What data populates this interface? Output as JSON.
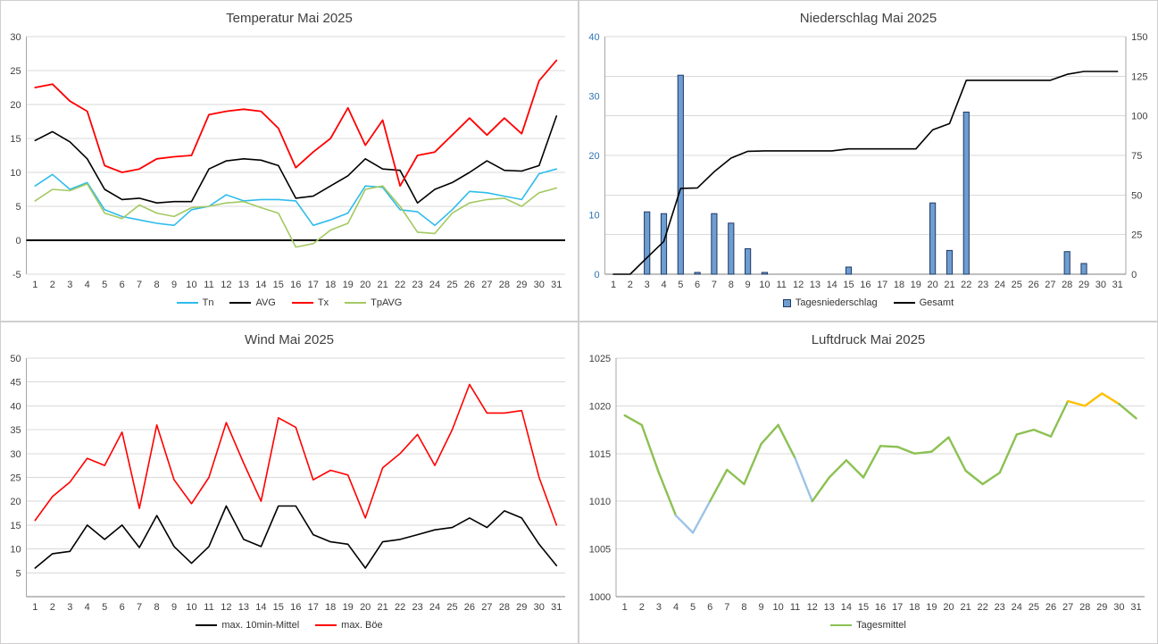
{
  "colors": {
    "grid": "#d9d9d9",
    "axis": "#a6a6a6",
    "axis_dark": "#7f7f7f",
    "tick_text": "#404040"
  },
  "chart_data": [
    {
      "type": "line",
      "title": "Temperatur Mai 2025",
      "categories": [
        "1",
        "2",
        "3",
        "4",
        "5",
        "6",
        "7",
        "8",
        "9",
        "10",
        "11",
        "12",
        "13",
        "14",
        "15",
        "16",
        "17",
        "18",
        "19",
        "20",
        "21",
        "22",
        "23",
        "24",
        "25",
        "26",
        "27",
        "28",
        "29",
        "30",
        "31"
      ],
      "y_left": {
        "min": -5,
        "max": 30,
        "ticks": [
          30,
          25,
          20,
          15,
          10,
          5,
          0,
          -5
        ]
      },
      "zero_axis": true,
      "legend_position": "bottom",
      "grid": true,
      "series": [
        {
          "name": "Tn",
          "type": "line",
          "color": "#2FBCEC",
          "width": 1.6,
          "values": [
            8,
            9.7,
            7.5,
            8.5,
            4.5,
            3.5,
            3,
            2.5,
            2.2,
            4.5,
            5,
            6.7,
            5.8,
            6,
            6,
            5.8,
            2.2,
            3,
            4,
            8,
            7.8,
            4.5,
            4.2,
            2.2,
            4.5,
            7.2,
            7,
            6.5,
            6,
            9.8,
            10.5
          ]
        },
        {
          "name": "AVG",
          "type": "line",
          "color": "#000000",
          "width": 1.6,
          "values": [
            14.7,
            16,
            14.5,
            12,
            7.5,
            6,
            6.2,
            5.5,
            5.7,
            5.7,
            10.5,
            11.7,
            12,
            11.8,
            11,
            6.2,
            6.5,
            8,
            9.5,
            12,
            10.5,
            10.3,
            5.5,
            7.5,
            8.5,
            10,
            11.7,
            10.3,
            10.2,
            11,
            18.3
          ]
        },
        {
          "name": "Tx",
          "type": "line",
          "color": "#FF0000",
          "width": 1.8,
          "values": [
            22.5,
            23,
            20.5,
            19,
            11,
            10,
            10.5,
            12,
            12.3,
            12.5,
            18.5,
            19,
            19.3,
            19,
            16.5,
            10.7,
            13,
            15,
            19.5,
            14,
            17.7,
            8,
            12.5,
            13,
            15.5,
            18,
            15.5,
            18,
            15.7,
            23.5,
            26.5
          ]
        },
        {
          "name": "TpAVG",
          "type": "line",
          "color": "#A3C961",
          "width": 1.6,
          "values": [
            5.8,
            7.5,
            7.3,
            8.3,
            4,
            3.2,
            5.2,
            4,
            3.5,
            4.8,
            5,
            5.5,
            5.7,
            4.8,
            4,
            -1,
            -0.5,
            1.5,
            2.5,
            7.5,
            8,
            5,
            1.2,
            1,
            4,
            5.5,
            6,
            6.2,
            5,
            7,
            7.7
          ]
        }
      ]
    },
    {
      "type": "combo",
      "title": "Niederschlag Mai 2025",
      "categories": [
        "1",
        "2",
        "3",
        "4",
        "5",
        "6",
        "7",
        "8",
        "9",
        "10",
        "11",
        "12",
        "13",
        "14",
        "15",
        "16",
        "17",
        "18",
        "19",
        "20",
        "21",
        "22",
        "23",
        "24",
        "25",
        "26",
        "27",
        "28",
        "29",
        "30",
        "31"
      ],
      "y_left": {
        "min": 0,
        "max": 40,
        "ticks": [
          40,
          30,
          20,
          10,
          0
        ],
        "color": "#2E75B6"
      },
      "y_right": {
        "min": 0,
        "max": 150,
        "ticks": [
          150,
          125,
          100,
          75,
          50,
          25,
          0
        ]
      },
      "gridline_axis": "right",
      "grid": true,
      "series": [
        {
          "name": "Tagesniederschlag",
          "type": "bar",
          "axis": "left",
          "color": "#6D9DD1",
          "border": "#1F3864",
          "values": [
            0,
            0,
            10.5,
            10.2,
            33.5,
            0.3,
            10.2,
            8.6,
            4.3,
            0.3,
            0,
            0,
            0,
            0,
            1.2,
            0,
            0,
            0,
            0,
            12,
            4,
            27.3,
            0,
            0,
            0,
            0,
            0,
            3.8,
            1.8,
            0,
            0
          ]
        },
        {
          "name": "Gesamt",
          "type": "line",
          "axis": "right",
          "color": "#000000",
          "width": 1.6,
          "values": [
            0,
            0,
            10.5,
            20.7,
            54.2,
            54.5,
            64.7,
            73.3,
            77.6,
            77.9,
            77.9,
            77.9,
            77.9,
            77.9,
            79.1,
            79.1,
            79.1,
            79.1,
            79.1,
            91.1,
            95.1,
            122.4,
            122.4,
            122.4,
            122.4,
            122.4,
            122.4,
            126.2,
            128,
            128,
            128
          ]
        }
      ]
    },
    {
      "type": "line",
      "title": "Wind Mai 2025",
      "categories": [
        "1",
        "2",
        "3",
        "4",
        "5",
        "6",
        "7",
        "8",
        "9",
        "10",
        "11",
        "12",
        "13",
        "14",
        "15",
        "16",
        "17",
        "18",
        "19",
        "20",
        "21",
        "22",
        "23",
        "24",
        "25",
        "26",
        "27",
        "28",
        "29",
        "30",
        "31"
      ],
      "y_left": {
        "min": 0,
        "max": 50,
        "ticks": [
          50,
          45,
          40,
          35,
          30,
          25,
          20,
          15,
          10,
          5
        ]
      },
      "grid": true,
      "series": [
        {
          "name": "max. 10min-Mittel",
          "type": "line",
          "color": "#000000",
          "width": 1.6,
          "values": [
            6,
            9,
            9.5,
            15,
            12,
            15,
            10.3,
            17,
            10.5,
            7,
            10.5,
            19,
            12,
            10.5,
            19,
            19,
            13,
            11.5,
            11,
            6,
            11.5,
            12,
            13,
            14,
            14.5,
            16.5,
            14.5,
            18,
            16.5,
            11,
            6.5
          ]
        },
        {
          "name": "max. Böe",
          "type": "line",
          "color": "#FF0000",
          "width": 1.6,
          "values": [
            16,
            21,
            24,
            29,
            27.5,
            34.5,
            18.5,
            36,
            24.5,
            19.5,
            25,
            36.5,
            28,
            20,
            37.5,
            35.5,
            24.5,
            26.5,
            25.5,
            16.5,
            27,
            30,
            34,
            27.5,
            35,
            44.5,
            38.5,
            38.5,
            39,
            25,
            15
          ]
        }
      ]
    },
    {
      "type": "line",
      "title": "Luftdruck Mai 2025",
      "categories": [
        "1",
        "2",
        "3",
        "4",
        "5",
        "6",
        "7",
        "8",
        "9",
        "10",
        "11",
        "12",
        "13",
        "14",
        "15",
        "16",
        "17",
        "18",
        "19",
        "20",
        "21",
        "22",
        "23",
        "24",
        "25",
        "26",
        "27",
        "28",
        "29",
        "30",
        "31"
      ],
      "y_left": {
        "min": 1000,
        "max": 1025,
        "ticks": [
          1025,
          1020,
          1015,
          1010,
          1005,
          1000
        ]
      },
      "grid": true,
      "series": [
        {
          "name": "Tagesmittel",
          "type": "line",
          "color": "#8CC152",
          "width": 2.4,
          "values": [
            1019,
            1018,
            1013,
            1008.5,
            1006.7,
            1010,
            1013.3,
            1011.8,
            1016,
            1018,
            1014.5,
            1010,
            1012.5,
            1014.3,
            1012.5,
            1015.8,
            1015.7,
            1015,
            1015.2,
            1016.7,
            1013.2,
            1011.8,
            1013,
            1017,
            1017.5,
            1016.8,
            1020.5,
            1020,
            1021.3,
            1020.2,
            1018.7
          ],
          "segment_colors": [
            "#8CC152",
            "#8CC152",
            "#8CC152",
            "#9DC3E6",
            "#9DC3E6",
            "#8CC152",
            "#8CC152",
            "#8CC152",
            "#8CC152",
            "#8CC152",
            "#9DC3E6",
            "#8CC152",
            "#8CC152",
            "#8CC152",
            "#8CC152",
            "#8CC152",
            "#8CC152",
            "#8CC152",
            "#8CC152",
            "#8CC152",
            "#8CC152",
            "#8CC152",
            "#8CC152",
            "#8CC152",
            "#8CC152",
            "#8CC152",
            "#FFC000",
            "#FFC000",
            "#FFC000",
            "#8CC152"
          ]
        }
      ]
    }
  ]
}
